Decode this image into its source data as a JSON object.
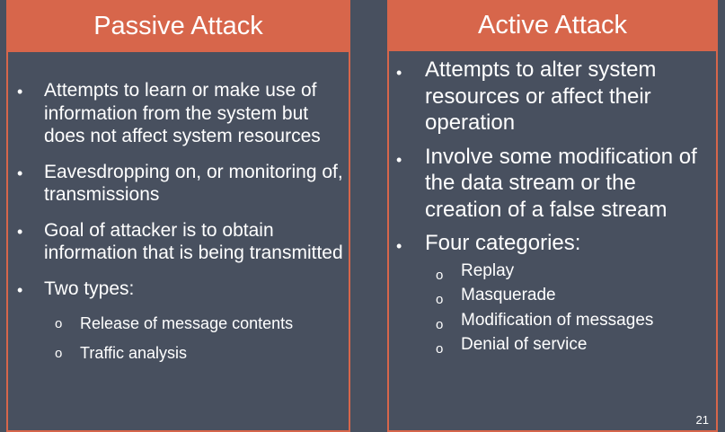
{
  "passive": {
    "title": "Passive Attack",
    "bullets": [
      "Attempts to learn or make use of information from the system but does not affect system resources",
      "Eavesdropping on, or monitoring of, transmissions",
      "Goal of attacker is to obtain information that is being transmitted",
      "Two types:"
    ],
    "sub_bullets": [
      "Release of message contents",
      "Traffic analysis"
    ]
  },
  "active": {
    "title": "Active Attack",
    "bullets": [
      "Attempts to alter system resources or affect their operation",
      "Involve some modification of the data stream or the creation of a false stream",
      "Four categories:"
    ],
    "sub_bullets": [
      "Replay",
      "Masquerade",
      "Modification of messages",
      "Denial of service"
    ]
  },
  "markers": {
    "bullet": "•",
    "sub": "o"
  },
  "colors": {
    "background": "#48505f",
    "accent": "#d7664b",
    "text": "#ffffff"
  },
  "slide_number": "21"
}
